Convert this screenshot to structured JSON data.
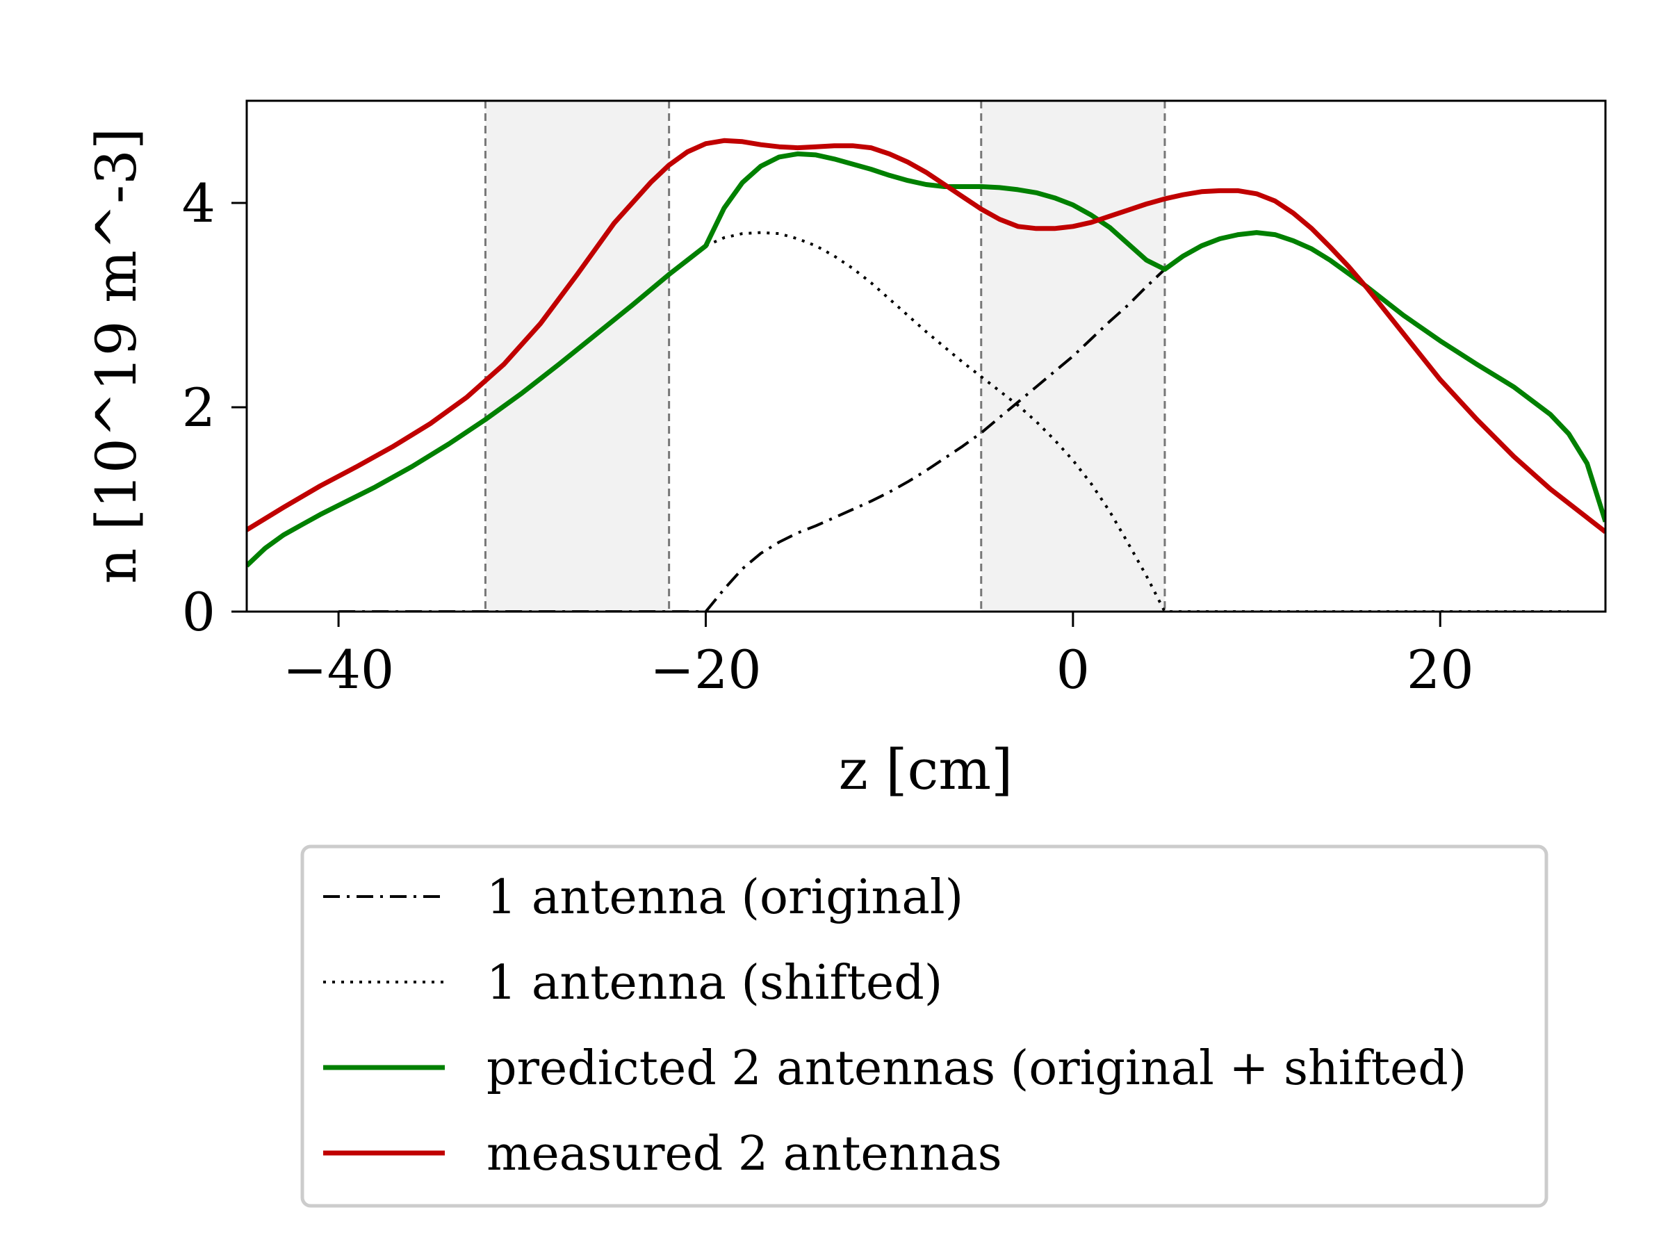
{
  "chart_data": {
    "type": "line",
    "title": "",
    "xlabel": "z [cm]",
    "ylabel": "n [10^19 m^-3]",
    "xlim": [
      -45,
      29
    ],
    "ylim": [
      0,
      5
    ],
    "grid": false,
    "legend_position": "below",
    "x_ticks": [
      {
        "value": -40,
        "label": "−40"
      },
      {
        "value": -20,
        "label": "−20"
      },
      {
        "value": 0,
        "label": "0"
      },
      {
        "value": 20,
        "label": "20"
      }
    ],
    "y_ticks": [
      {
        "value": 0,
        "label": "0"
      },
      {
        "value": 2,
        "label": "2"
      },
      {
        "value": 4,
        "label": "4"
      }
    ],
    "shaded_regions": [
      [
        -32,
        -22
      ],
      [
        -5,
        5
      ]
    ],
    "vertical_lines": [
      -32,
      -22,
      -5,
      5
    ],
    "colors": {
      "original": "#000000",
      "shifted": "#000000",
      "predicted": "#008000",
      "measured": "#c00000",
      "shade": "#f2f2f2",
      "vline": "#777777"
    },
    "series": [
      {
        "key": "original",
        "name": "1 antenna (original)",
        "style": "dashdot",
        "x": [
          -40,
          -35,
          -30,
          -25,
          -20,
          -19,
          -18,
          -17,
          -16,
          -15,
          -14,
          -13,
          -12,
          -11,
          -10,
          -9,
          -8,
          -7,
          -6,
          -5,
          -4,
          -3,
          -2,
          -1,
          0,
          1,
          2,
          3,
          4,
          5
        ],
        "y": [
          0,
          0,
          0,
          0,
          0,
          0.22,
          0.42,
          0.57,
          0.68,
          0.77,
          0.84,
          0.92,
          1.0,
          1.08,
          1.17,
          1.27,
          1.38,
          1.5,
          1.62,
          1.75,
          1.9,
          2.05,
          2.2,
          2.35,
          2.5,
          2.67,
          2.84,
          3.0,
          3.18,
          3.35
        ]
      },
      {
        "key": "shifted",
        "name": "1 antenna (shifted)",
        "style": "dotted",
        "x": [
          -20,
          -19,
          -18,
          -17,
          -16,
          -15,
          -14,
          -13,
          -12,
          -11,
          -10,
          -9,
          -8,
          -7,
          -6,
          -5,
          -4,
          -3,
          -2,
          -1,
          0,
          1,
          2,
          3,
          4,
          5,
          10,
          15,
          20,
          25,
          27
        ],
        "y": [
          3.58,
          3.66,
          3.7,
          3.71,
          3.7,
          3.65,
          3.58,
          3.48,
          3.36,
          3.22,
          3.06,
          2.9,
          2.74,
          2.59,
          2.44,
          2.3,
          2.16,
          2.02,
          1.86,
          1.68,
          1.48,
          1.25,
          0.98,
          0.67,
          0.35,
          0,
          0,
          0,
          0,
          0,
          0
        ]
      },
      {
        "key": "predicted",
        "name": "predicted 2 antennas (original + shifted)",
        "style": "solid",
        "x": [
          -45,
          -44,
          -43,
          -42,
          -41,
          -40,
          -38,
          -36,
          -34,
          -32,
          -30,
          -28,
          -26,
          -24,
          -22,
          -21,
          -20,
          -19,
          -18,
          -17,
          -16,
          -15,
          -14,
          -13,
          -12,
          -11,
          -10,
          -9,
          -8,
          -7,
          -6,
          -5,
          -4,
          -3,
          -2,
          -1,
          0,
          1,
          2,
          3,
          4,
          5,
          6,
          7,
          8,
          9,
          10,
          11,
          12,
          13,
          14,
          15,
          16,
          17,
          18,
          20,
          22,
          24,
          26,
          27,
          28,
          29
        ],
        "y": [
          0.45,
          0.62,
          0.75,
          0.85,
          0.95,
          1.04,
          1.22,
          1.42,
          1.64,
          1.88,
          2.14,
          2.42,
          2.71,
          3.0,
          3.3,
          3.44,
          3.58,
          3.95,
          4.2,
          4.36,
          4.45,
          4.48,
          4.47,
          4.43,
          4.38,
          4.33,
          4.27,
          4.22,
          4.18,
          4.16,
          4.16,
          4.16,
          4.15,
          4.13,
          4.1,
          4.05,
          3.98,
          3.88,
          3.76,
          3.6,
          3.44,
          3.35,
          3.48,
          3.58,
          3.65,
          3.69,
          3.71,
          3.69,
          3.63,
          3.55,
          3.44,
          3.31,
          3.18,
          3.04,
          2.9,
          2.65,
          2.42,
          2.2,
          1.93,
          1.74,
          1.45,
          0.88
        ]
      },
      {
        "key": "measured",
        "name": "measured 2 antennas",
        "style": "solid",
        "x": [
          -45,
          -43,
          -41,
          -39,
          -37,
          -35,
          -33,
          -31,
          -29,
          -27,
          -25,
          -23,
          -22,
          -21,
          -20,
          -19,
          -18,
          -17,
          -16,
          -15,
          -14,
          -13,
          -12,
          -11,
          -10,
          -9,
          -8,
          -7,
          -6,
          -5,
          -4,
          -3,
          -2,
          -1,
          0,
          1,
          2,
          3,
          4,
          5,
          6,
          7,
          8,
          9,
          10,
          11,
          12,
          13,
          14,
          15,
          16,
          18,
          20,
          22,
          24,
          26,
          28,
          29
        ],
        "y": [
          0.8,
          1.02,
          1.23,
          1.42,
          1.62,
          1.84,
          2.1,
          2.42,
          2.82,
          3.3,
          3.8,
          4.2,
          4.37,
          4.5,
          4.58,
          4.61,
          4.6,
          4.57,
          4.55,
          4.54,
          4.55,
          4.56,
          4.56,
          4.54,
          4.48,
          4.4,
          4.3,
          4.18,
          4.06,
          3.94,
          3.84,
          3.77,
          3.75,
          3.75,
          3.77,
          3.81,
          3.87,
          3.93,
          3.99,
          4.04,
          4.08,
          4.11,
          4.12,
          4.12,
          4.09,
          4.02,
          3.9,
          3.75,
          3.57,
          3.38,
          3.17,
          2.72,
          2.27,
          1.88,
          1.52,
          1.2,
          0.92,
          0.78
        ]
      }
    ]
  }
}
